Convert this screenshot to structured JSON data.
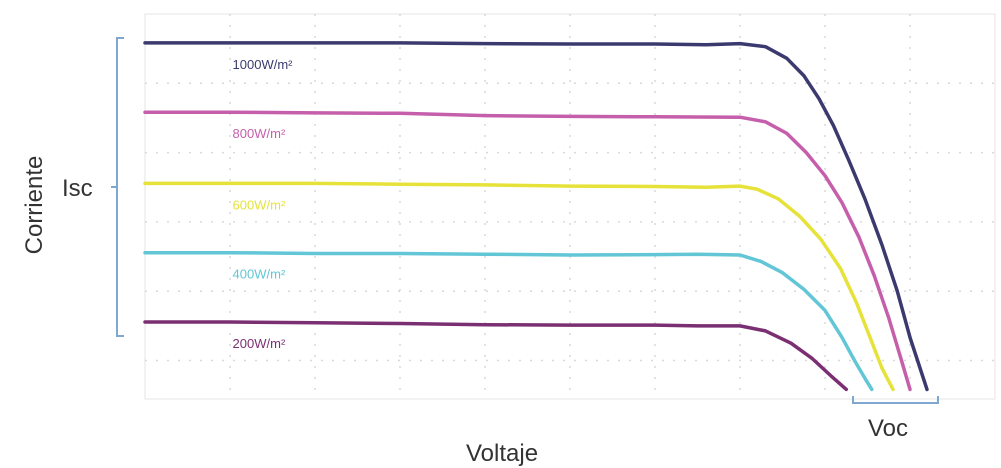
{
  "chart_data": {
    "type": "line",
    "title": "",
    "xlabel": "Voltaje",
    "ylabel": "Corriente",
    "annotations": {
      "isc": "Isc",
      "voc": "Voc"
    },
    "grid": "dotted",
    "xlim": [
      0,
      100
    ],
    "ylim": [
      0,
      100
    ],
    "colors": {
      "axis_text": "#333333",
      "bracket": "#7fa7cf",
      "grid": "#d9d9d9",
      "frame": "#e6e6e6"
    },
    "series": [
      {
        "name": "1000W/m²",
        "color": "#3b3a6e",
        "x": [
          0,
          10,
          20,
          30,
          40,
          50,
          60,
          66,
          70,
          73,
          75.5,
          77.5,
          79.3,
          81,
          82.8,
          84.7,
          86.7,
          88.5,
          90,
          92
        ],
        "y": [
          92.5,
          92.5,
          92.5,
          92.5,
          92.3,
          92.2,
          92.2,
          92.0,
          92.3,
          91.5,
          88.5,
          84,
          78,
          71,
          62,
          52,
          40,
          28,
          16,
          2.5
        ]
      },
      {
        "name": "800W/m²",
        "color": "#c55fab",
        "x": [
          0,
          10,
          20,
          30,
          40,
          50,
          60,
          70,
          73,
          75.5,
          77.8,
          80,
          82,
          84,
          85.8,
          87.5,
          89,
          90
        ],
        "y": [
          74.5,
          74.5,
          74.3,
          74.2,
          73.6,
          73.4,
          73.3,
          73.2,
          72.0,
          69,
          64,
          58,
          51,
          42,
          32,
          21,
          10,
          2.5
        ]
      },
      {
        "name": "600W/m²",
        "color": "#e6e23a",
        "x": [
          0,
          10,
          20,
          30,
          40,
          50,
          60,
          66,
          70,
          72,
          74.5,
          77,
          79.5,
          81.8,
          83.7,
          85.3,
          86.7,
          88
        ],
        "y": [
          56,
          56,
          56,
          55.8,
          55.6,
          55.3,
          55.2,
          55.0,
          55.3,
          54.5,
          52,
          47.5,
          41.5,
          34,
          25,
          16,
          8,
          2.5
        ]
      },
      {
        "name": "400W/m²",
        "color": "#62c6d6",
        "x": [
          0,
          10,
          20,
          30,
          40,
          50,
          60,
          65,
          70,
          72.5,
          75,
          77.5,
          80,
          82,
          83.6,
          84.8,
          85.5
        ],
        "y": [
          38,
          38,
          37.8,
          37.8,
          37.6,
          37.4,
          37.5,
          37.6,
          37.4,
          35.7,
          32.8,
          28.5,
          23,
          16,
          9.5,
          5,
          2.5
        ]
      },
      {
        "name": "200W/m²",
        "color": "#7b2f73",
        "x": [
          0,
          10,
          20,
          30,
          40,
          50,
          60,
          65,
          70,
          73,
          76,
          78.5,
          80.7,
          82.5
        ],
        "y": [
          20,
          20,
          19.8,
          19.6,
          19.3,
          19.2,
          19.2,
          19.0,
          19.0,
          17.7,
          14.5,
          10.5,
          6,
          2.5
        ]
      }
    ]
  }
}
